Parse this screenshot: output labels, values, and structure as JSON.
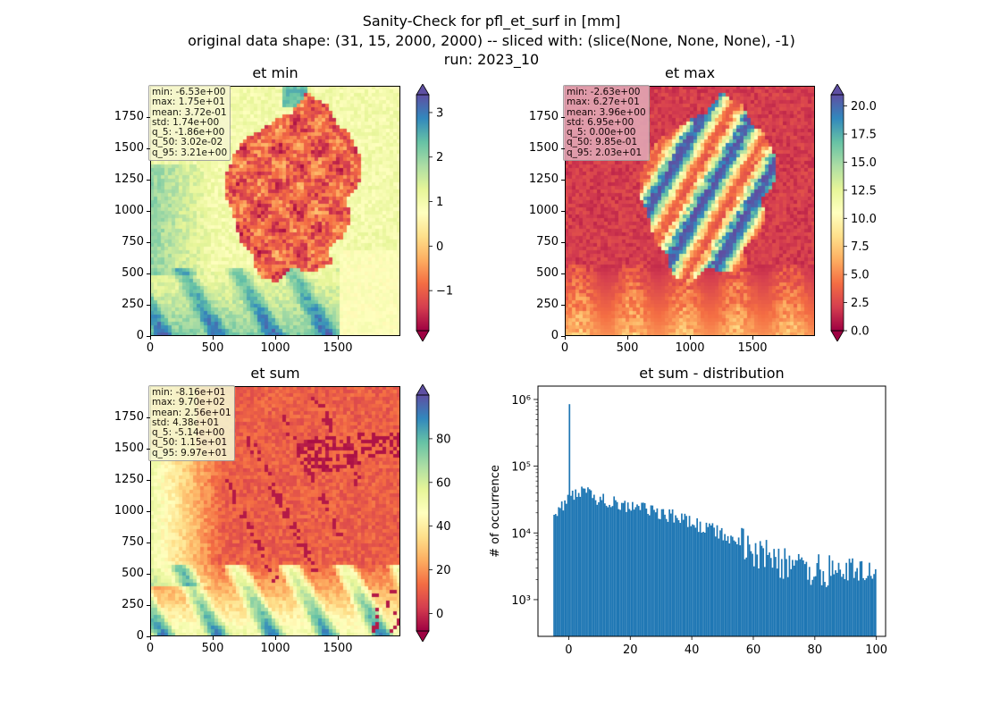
{
  "figure": {
    "title_line1": "Sanity-Check for pfl_et_surf in [mm]",
    "title_line2": "original data shape: (31, 15, 2000, 2000) -- sliced with: (slice(None, None, None), -1)",
    "title_line3": "run: 2023_10"
  },
  "chart_data": [
    {
      "type": "heatmap",
      "title": "et min",
      "colormap": "Spectral",
      "xlim": [
        0,
        2000
      ],
      "ylim": [
        0,
        2000
      ],
      "xticks": [
        "0",
        "500",
        "1000",
        "1500"
      ],
      "yticks": [
        "0",
        "250",
        "500",
        "750",
        "1000",
        "1250",
        "1500",
        "1750"
      ],
      "colorbar_range": [
        -1.9,
        3.4
      ],
      "colorbar_ticks": [
        "3",
        "2",
        "1",
        "0",
        "−1"
      ],
      "colorbar_tick_values": [
        3,
        2,
        1,
        0,
        -1
      ],
      "stats": [
        "min: -6.53e+00",
        "max: 1.75e+01",
        "mean: 3.72e-01",
        "std: 1.74e+00",
        "q_5: -1.86e+00",
        "q_50: 3.02e-02",
        "q_95: 3.21e+00"
      ],
      "stats_box_color": "#f5f5d0"
    },
    {
      "type": "heatmap",
      "title": "et max",
      "colormap": "Spectral",
      "xlim": [
        0,
        2000
      ],
      "ylim": [
        0,
        2000
      ],
      "xticks": [
        "0",
        "500",
        "1000",
        "1500"
      ],
      "yticks": [
        "0",
        "250",
        "500",
        "750",
        "1000",
        "1250",
        "1500",
        "1750"
      ],
      "colorbar_range": [
        0,
        21
      ],
      "colorbar_ticks": [
        "20.0",
        "17.5",
        "15.0",
        "12.5",
        "10.0",
        "7.5",
        "5.0",
        "2.5",
        "0.0"
      ],
      "colorbar_tick_values": [
        20,
        17.5,
        15,
        12.5,
        10,
        7.5,
        5,
        2.5,
        0
      ],
      "stats": [
        "min: -2.63e+00",
        "max: 6.27e+01",
        "mean: 3.96e+00",
        "std: 6.95e+00",
        "q_5: 0.00e+00",
        "q_50: 9.85e-01",
        "q_95: 2.03e+01"
      ],
      "stats_box_color": "#e2a6b4"
    },
    {
      "type": "heatmap",
      "title": "et sum",
      "colormap": "Spectral",
      "xlim": [
        0,
        2000
      ],
      "ylim": [
        0,
        2000
      ],
      "xticks": [
        "0",
        "500",
        "1000",
        "1500"
      ],
      "yticks": [
        "0",
        "250",
        "500",
        "750",
        "1000",
        "1250",
        "1500",
        "1750"
      ],
      "colorbar_range": [
        -8,
        100
      ],
      "colorbar_ticks": [
        "80",
        "60",
        "40",
        "20",
        "0"
      ],
      "colorbar_tick_values": [
        80,
        60,
        40,
        20,
        0
      ],
      "stats": [
        "min: -8.16e+01",
        "max: 9.70e+02",
        "mean: 2.56e+01",
        "std: 4.38e+01",
        "q_5: -5.14e+00",
        "q_50: 1.15e+01",
        "q_95: 9.97e+01"
      ],
      "stats_box_color": "#f5f5d0"
    },
    {
      "type": "bar",
      "title": "et sum - distribution",
      "ylabel": "# of occurrence",
      "yscale": "log",
      "xlim": [
        -10,
        103
      ],
      "ylim_log10": [
        2.45,
        6.2
      ],
      "xticks": [
        "0",
        "20",
        "40",
        "60",
        "80",
        "100"
      ],
      "xtick_values": [
        0,
        20,
        40,
        60,
        80,
        100
      ],
      "yticks": [
        "10³",
        "10⁴",
        "10⁵",
        "10⁶"
      ],
      "ytick_log10": [
        3,
        4,
        5,
        6
      ],
      "bar_color": "#1f77b4",
      "spike": {
        "x": 0,
        "count": 850000
      },
      "anchors": [
        {
          "x": -5,
          "count": 15000
        },
        {
          "x": -2,
          "count": 25000
        },
        {
          "x": 0,
          "count": 35000
        },
        {
          "x": 5,
          "count": 40000
        },
        {
          "x": 10,
          "count": 32000
        },
        {
          "x": 20,
          "count": 25000
        },
        {
          "x": 30,
          "count": 20000
        },
        {
          "x": 40,
          "count": 14000
        },
        {
          "x": 50,
          "count": 10000
        },
        {
          "x": 60,
          "count": 5500
        },
        {
          "x": 70,
          "count": 3500
        },
        {
          "x": 80,
          "count": 2800
        },
        {
          "x": 90,
          "count": 2500
        },
        {
          "x": 100,
          "count": 2500
        }
      ]
    }
  ]
}
